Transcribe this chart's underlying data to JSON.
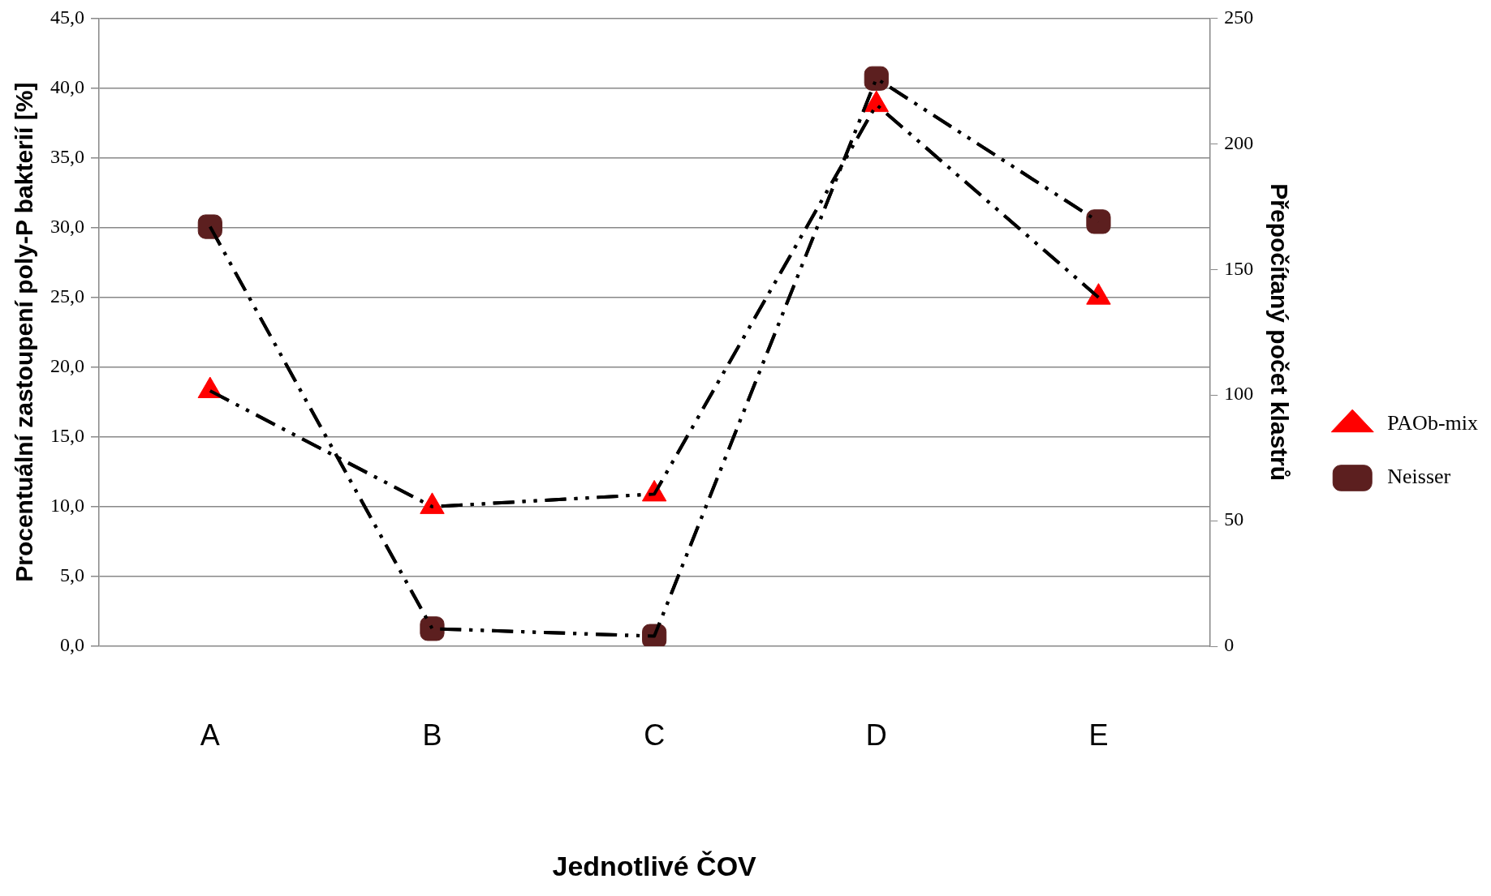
{
  "chart_data": {
    "type": "line",
    "xlabel": "Jednotlivé ČOV",
    "ylabel": "Procentuální zastoupení poly-P bakterií [%]",
    "y2label": "Přepočítaný počet klastrů",
    "categories": [
      "A",
      "B",
      "C",
      "D",
      "E"
    ],
    "series": [
      {
        "name": "PAOb-mix",
        "color": "#ff0000",
        "marker": "triangle",
        "values": [
          18.3,
          10.0,
          10.9,
          38.8,
          25.0
        ]
      },
      {
        "name": "Neisser",
        "color": "#5c1f1f",
        "marker": "square",
        "axis": "y2",
        "values": [
          167,
          7,
          4,
          226,
          169
        ]
      }
    ],
    "ylim": [
      0,
      45
    ],
    "yticks": [
      {
        "value": 0,
        "label": "0,0"
      },
      {
        "value": 5,
        "label": "5,0"
      },
      {
        "value": 10,
        "label": "10,0"
      },
      {
        "value": 15,
        "label": "15,0"
      },
      {
        "value": 20,
        "label": "20,0"
      },
      {
        "value": 25,
        "label": "25,0"
      },
      {
        "value": 30,
        "label": "30,0"
      },
      {
        "value": 35,
        "label": "35,0"
      },
      {
        "value": 40,
        "label": "40,0"
      },
      {
        "value": 45,
        "label": "45,0"
      }
    ],
    "y2lim": [
      0,
      250
    ],
    "y2ticks": [
      0,
      50,
      100,
      150,
      200,
      250
    ],
    "grid": "y",
    "legend": "right",
    "line_style": "dashed"
  }
}
